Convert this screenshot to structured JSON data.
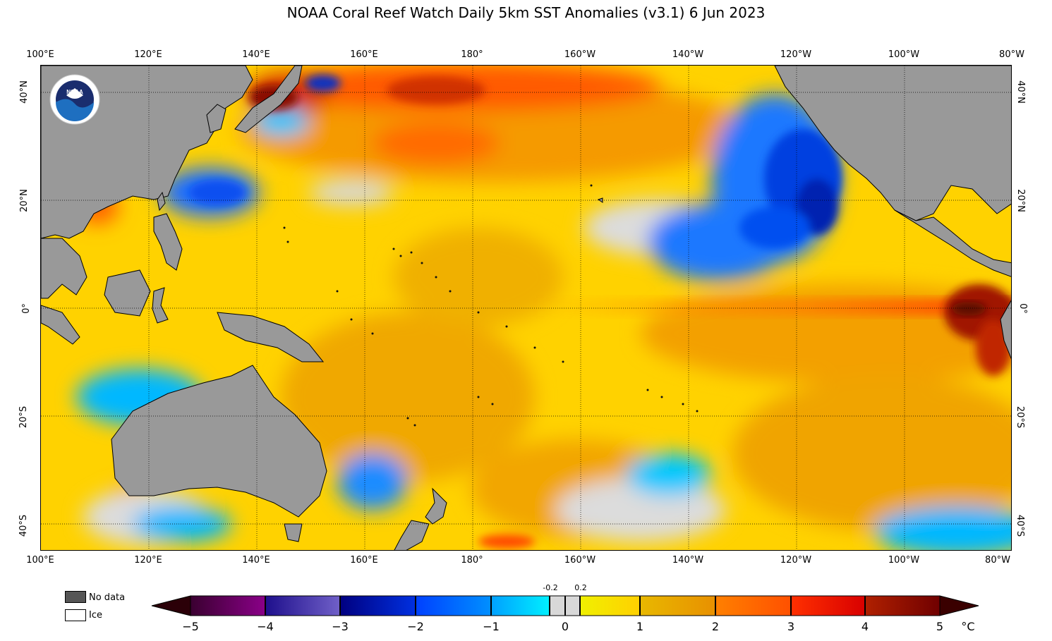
{
  "title": "NOAA Coral Reef Watch Daily 5km SST Anomalies  (v3.1)   6 Jun 2023",
  "longitudes": [
    "100°E",
    "120°E",
    "140°E",
    "160°E",
    "180°",
    "160°W",
    "140°W",
    "120°W",
    "100°W",
    "80°W"
  ],
  "latitudes": [
    "40°N",
    "20°N",
    "0°",
    "20°S",
    "40°S"
  ],
  "logo": {
    "text": "NOAA",
    "ring": "NATIONAL OCEANIC AND ATMOSPHERIC ADMINISTRATION · U.S. DEPARTMENT OF COMMERCE"
  },
  "legend": {
    "no_data": "No data",
    "ice": "Ice",
    "no_data_color": "#555555",
    "ice_color": "#ffffff"
  },
  "colorbar": {
    "ticks": [
      "−5",
      "−4",
      "−3",
      "−2",
      "−1",
      "0",
      "1",
      "2",
      "3",
      "4",
      "5"
    ],
    "small_ticks": [
      "-0.2",
      "0.2"
    ],
    "unit": "°C",
    "colors": {
      "extend_low": "#2b0008",
      "seg_m5_m4": [
        "#3a0030",
        "#880080"
      ],
      "seg_m4_m3": [
        "#1e0f8c",
        "#7060c8"
      ],
      "seg_m3_m2": [
        "#000080",
        "#0030e0"
      ],
      "seg_m2_m1": [
        "#0040ff",
        "#0090ff"
      ],
      "seg_m1_0": [
        "#00a0ff",
        "#00f0ff"
      ],
      "neutral": "#d8d8d8",
      "seg_0_1": [
        "#f0f000",
        "#ffd000"
      ],
      "seg_1_2": [
        "#e8b000",
        "#e89000"
      ],
      "seg_2_3": [
        "#ff8000",
        "#ff5000"
      ],
      "seg_3_4": [
        "#ff3000",
        "#d80000"
      ],
      "seg_4_5": [
        "#b02000",
        "#700000"
      ],
      "extend_high": "#3a0000"
    }
  },
  "map_colors": {
    "land": "#999999",
    "ocean_base": "#ffd200",
    "warm": "#f0a000",
    "hot": "#ff6a00",
    "very_hot": "#d02000",
    "extreme": "#700000",
    "neutral": "#d8d8d8",
    "cool": "#00c8ff",
    "cold": "#0060ff",
    "very_cold": "#0020c0"
  }
}
